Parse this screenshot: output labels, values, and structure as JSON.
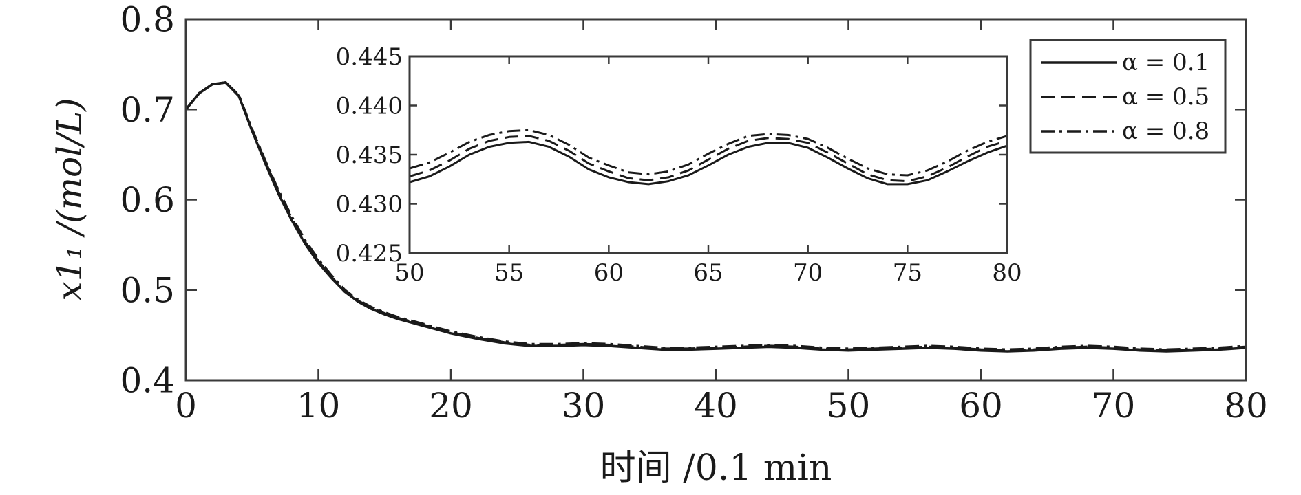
{
  "chart_data": [
    {
      "type": "line",
      "title": "",
      "xlabel": "时间 /0.1 min",
      "ylabel": "x1₁ /(mol/L)",
      "xlim": [
        0,
        80
      ],
      "ylim": [
        0.4,
        0.8
      ],
      "xticks": [
        0,
        10,
        20,
        30,
        40,
        50,
        60,
        70,
        80
      ],
      "xtick_labels": [
        "0",
        "10",
        "20",
        "30",
        "40",
        "50",
        "60",
        "70",
        "80"
      ],
      "yticks": [
        0.4,
        0.5,
        0.6,
        0.7,
        0.8
      ],
      "ytick_labels": [
        "0.4",
        "0.5",
        "0.6",
        "0.7",
        "0.8"
      ],
      "grid": false,
      "legend_position": "top-right",
      "series": [
        {
          "name": "α = 0.1",
          "dash": "solid",
          "color": "#1a1a1a",
          "x": [
            0,
            1,
            2,
            3,
            4,
            5,
            6,
            7,
            8,
            9,
            10,
            11,
            12,
            13,
            14,
            15,
            16,
            18,
            20,
            22,
            24,
            26,
            28,
            30,
            32,
            34,
            36,
            38,
            40,
            42,
            44,
            46,
            48,
            50,
            52,
            54,
            56,
            58,
            60,
            62,
            64,
            66,
            68,
            70,
            72,
            74,
            76,
            78,
            80
          ],
          "y": [
            0.7,
            0.718,
            0.728,
            0.73,
            0.715,
            0.676,
            0.64,
            0.606,
            0.577,
            0.551,
            0.53,
            0.513,
            0.498,
            0.487,
            0.479,
            0.473,
            0.468,
            0.46,
            0.452,
            0.446,
            0.441,
            0.438,
            0.438,
            0.439,
            0.438,
            0.436,
            0.434,
            0.434,
            0.435,
            0.436,
            0.437,
            0.436,
            0.434,
            0.433,
            0.434,
            0.435,
            0.436,
            0.435,
            0.433,
            0.432,
            0.433,
            0.435,
            0.436,
            0.435,
            0.433,
            0.432,
            0.433,
            0.434,
            0.436
          ]
        },
        {
          "name": "α = 0.5",
          "dash": "dashed",
          "color": "#1a1a1a",
          "x": [
            0,
            1,
            2,
            3,
            4,
            5,
            6,
            7,
            8,
            9,
            10,
            11,
            12,
            13,
            14,
            15,
            16,
            18,
            20,
            22,
            24,
            26,
            28,
            30,
            32,
            34,
            36,
            38,
            40,
            42,
            44,
            46,
            48,
            50,
            52,
            54,
            56,
            58,
            60,
            62,
            64,
            66,
            68,
            70,
            72,
            74,
            76,
            78,
            80
          ],
          "y": [
            0.7,
            0.718,
            0.728,
            0.73,
            0.715,
            0.677,
            0.642,
            0.608,
            0.579,
            0.553,
            0.532,
            0.514,
            0.499,
            0.488,
            0.48,
            0.474,
            0.469,
            0.461,
            0.453,
            0.447,
            0.442,
            0.439,
            0.439,
            0.44,
            0.439,
            0.437,
            0.435,
            0.435,
            0.436,
            0.437,
            0.438,
            0.437,
            0.435,
            0.434,
            0.435,
            0.436,
            0.437,
            0.436,
            0.434,
            0.433,
            0.434,
            0.436,
            0.437,
            0.436,
            0.434,
            0.433,
            0.434,
            0.435,
            0.437
          ]
        },
        {
          "name": "α = 0.8",
          "dash": "dashdot",
          "color": "#1a1a1a",
          "x": [
            0,
            1,
            2,
            3,
            4,
            5,
            6,
            7,
            8,
            9,
            10,
            11,
            12,
            13,
            14,
            15,
            16,
            18,
            20,
            22,
            24,
            26,
            28,
            30,
            32,
            34,
            36,
            38,
            40,
            42,
            44,
            46,
            48,
            50,
            52,
            54,
            56,
            58,
            60,
            62,
            64,
            66,
            68,
            70,
            72,
            74,
            76,
            78,
            80
          ],
          "y": [
            0.7,
            0.718,
            0.728,
            0.73,
            0.716,
            0.678,
            0.643,
            0.61,
            0.581,
            0.555,
            0.534,
            0.516,
            0.5,
            0.489,
            0.481,
            0.475,
            0.47,
            0.462,
            0.454,
            0.448,
            0.443,
            0.44,
            0.44,
            0.441,
            0.44,
            0.438,
            0.436,
            0.436,
            0.437,
            0.438,
            0.439,
            0.438,
            0.436,
            0.435,
            0.436,
            0.437,
            0.438,
            0.437,
            0.435,
            0.434,
            0.435,
            0.437,
            0.438,
            0.437,
            0.435,
            0.434,
            0.435,
            0.436,
            0.438
          ]
        }
      ]
    },
    {
      "type": "line",
      "title": "",
      "xlabel": "",
      "ylabel": "",
      "xlim": [
        50,
        80
      ],
      "ylim": [
        0.425,
        0.445
      ],
      "xticks": [
        50,
        55,
        60,
        65,
        70,
        75,
        80
      ],
      "xtick_labels": [
        "50",
        "55",
        "60",
        "65",
        "70",
        "75",
        "80"
      ],
      "yticks": [
        0.425,
        0.43,
        0.435,
        0.44,
        0.445
      ],
      "ytick_labels": [
        "0.425",
        "0.430",
        "0.435",
        "0.440",
        "0.445"
      ],
      "grid": false,
      "series": [
        {
          "dash": "solid",
          "x": [
            50,
            51,
            52,
            53,
            54,
            55,
            56,
            57,
            58,
            59,
            60,
            61,
            62,
            63,
            64,
            65,
            66,
            67,
            68,
            69,
            70,
            71,
            72,
            73,
            74,
            75,
            76,
            77,
            78,
            79,
            80
          ],
          "y": [
            0.4322,
            0.4328,
            0.4338,
            0.435,
            0.4358,
            0.4362,
            0.4363,
            0.4358,
            0.4348,
            0.4335,
            0.4327,
            0.4322,
            0.432,
            0.4323,
            0.4329,
            0.4339,
            0.435,
            0.4358,
            0.4362,
            0.4362,
            0.4357,
            0.4347,
            0.4336,
            0.4326,
            0.432,
            0.432,
            0.4324,
            0.4333,
            0.4343,
            0.4352,
            0.4359
          ]
        },
        {
          "dash": "dashed",
          "x": [
            50,
            51,
            52,
            53,
            54,
            55,
            56,
            57,
            58,
            59,
            60,
            61,
            62,
            63,
            64,
            65,
            66,
            67,
            68,
            69,
            70,
            71,
            72,
            73,
            74,
            75,
            76,
            77,
            78,
            79,
            80
          ],
          "y": [
            0.4328,
            0.4334,
            0.4344,
            0.4356,
            0.4364,
            0.4368,
            0.4369,
            0.4364,
            0.4354,
            0.4341,
            0.4333,
            0.4326,
            0.4324,
            0.4327,
            0.4334,
            0.4345,
            0.4356,
            0.4364,
            0.4367,
            0.4366,
            0.4362,
            0.4352,
            0.4341,
            0.433,
            0.4324,
            0.4323,
            0.4328,
            0.4337,
            0.4348,
            0.4358,
            0.4364
          ]
        },
        {
          "dash": "dashdot",
          "x": [
            50,
            51,
            52,
            53,
            54,
            55,
            56,
            57,
            58,
            59,
            60,
            61,
            62,
            63,
            64,
            65,
            66,
            67,
            68,
            69,
            70,
            71,
            72,
            73,
            74,
            75,
            76,
            77,
            78,
            79,
            80
          ],
          "y": [
            0.4336,
            0.4342,
            0.4352,
            0.4363,
            0.437,
            0.4374,
            0.4375,
            0.437,
            0.436,
            0.4347,
            0.4339,
            0.4332,
            0.433,
            0.4333,
            0.434,
            0.4351,
            0.4361,
            0.4369,
            0.4371,
            0.437,
            0.4366,
            0.4357,
            0.4346,
            0.4336,
            0.433,
            0.4329,
            0.4334,
            0.4343,
            0.4354,
            0.4363,
            0.4369
          ]
        }
      ]
    }
  ]
}
